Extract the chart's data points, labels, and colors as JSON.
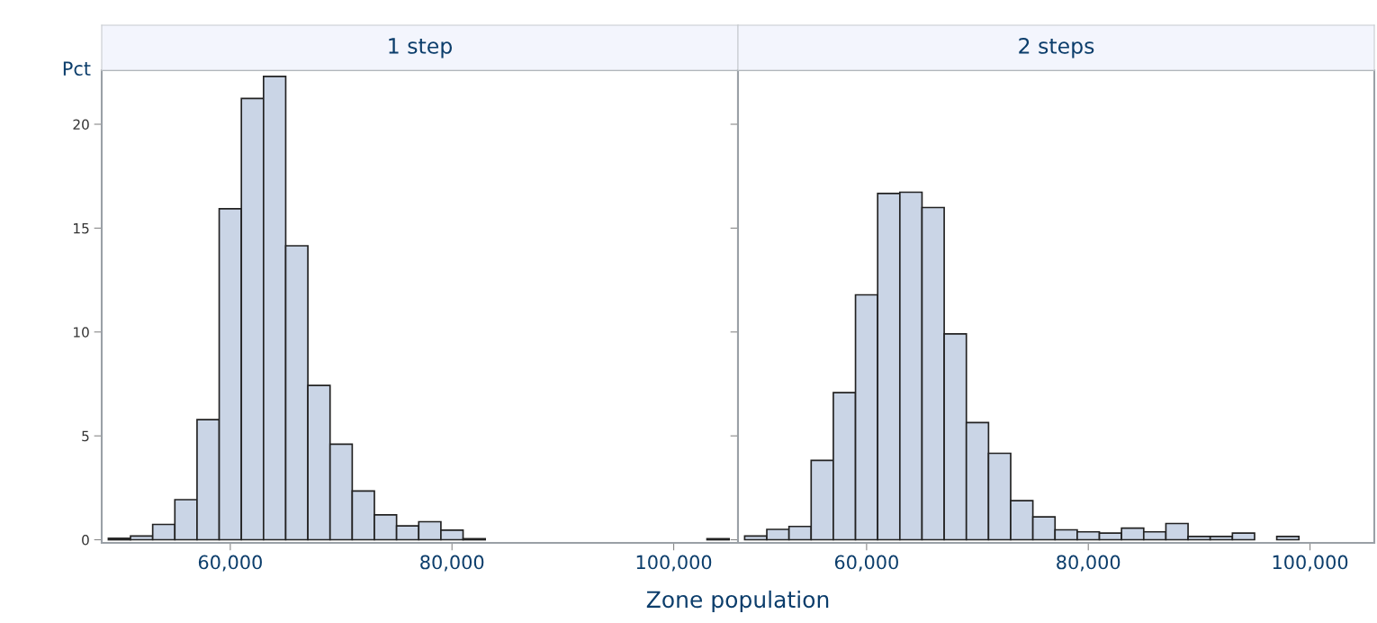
{
  "chart_data": [
    {
      "type": "histogram",
      "title": "1 step",
      "xlabel": "Zone population",
      "ylabel": "Pct",
      "color": "#cad5e6",
      "bins": [
        49000,
        51000,
        53000,
        55000,
        57000,
        59000,
        61000,
        63000,
        65000,
        67000,
        69000,
        71000,
        73000,
        75000,
        77000,
        79000,
        81000,
        83000,
        85000,
        87000,
        89000,
        91000,
        93000,
        95000,
        97000,
        99000,
        101000,
        103000,
        105000
      ],
      "values": [
        0.07,
        0.18,
        0.74,
        1.93,
        5.78,
        15.93,
        21.24,
        22.3,
        14.15,
        7.43,
        4.6,
        2.35,
        1.2,
        0.67,
        0.87,
        0.46,
        0.05,
        0,
        0,
        0,
        0,
        0,
        0,
        0,
        0,
        0,
        0,
        0.05
      ],
      "xlim": [
        48400,
        105800
      ],
      "xticks": [
        {
          "value": 60000,
          "label": "60,000"
        },
        {
          "value": 80000,
          "label": "80,000"
        },
        {
          "value": 100000,
          "label": "100,000"
        }
      ],
      "ylim": [
        -0.15,
        22.6
      ],
      "yticks": [
        0,
        5,
        10,
        15,
        20
      ],
      "grid": false
    },
    {
      "type": "histogram",
      "title": "2 steps",
      "color": "#cad5e6",
      "bins": [
        49000,
        51000,
        53000,
        55000,
        57000,
        59000,
        61000,
        63000,
        65000,
        67000,
        69000,
        71000,
        73000,
        75000,
        77000,
        79000,
        81000,
        83000,
        85000,
        87000,
        89000,
        91000,
        93000,
        95000,
        97000,
        99000
      ],
      "values": [
        0.18,
        0.5,
        0.64,
        3.82,
        7.08,
        11.79,
        16.67,
        16.73,
        15.99,
        9.91,
        5.64,
        4.16,
        1.88,
        1.1,
        0.48,
        0.38,
        0.32,
        0.56,
        0.38,
        0.78,
        0.16,
        0.16,
        0.32,
        0,
        0.16
      ],
      "xlim": [
        48400,
        105800
      ],
      "xticks": [
        {
          "value": 60000,
          "label": "60,000"
        },
        {
          "value": 80000,
          "label": "80,000"
        },
        {
          "value": 100000,
          "label": "100,000"
        }
      ],
      "ylim": [
        -0.15,
        22.6
      ],
      "yticks": [
        0,
        5,
        10,
        15,
        20
      ],
      "tick_labels": "x",
      "grid": false
    }
  ]
}
